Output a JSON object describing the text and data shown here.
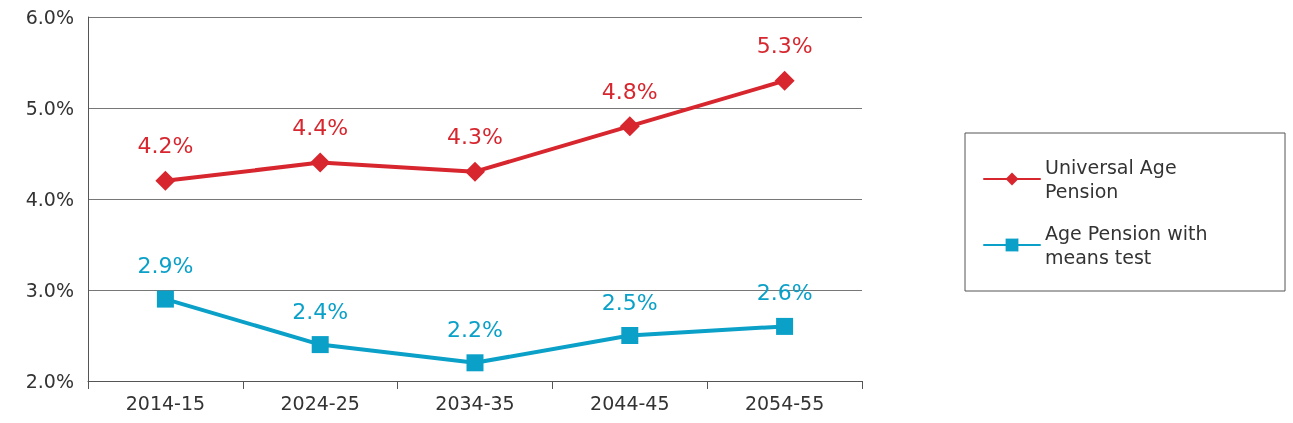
{
  "chart_data": {
    "type": "line",
    "categories": [
      "2014-15",
      "2024-25",
      "2034-35",
      "2044-45",
      "2054-55"
    ],
    "series": [
      {
        "name": "Universal Age Pension",
        "color": "#d7262e",
        "marker": "diamond",
        "values": [
          4.2,
          4.4,
          4.3,
          4.8,
          5.3
        ],
        "value_labels": [
          "4.2%",
          "4.4%",
          "4.3%",
          "4.8%",
          "5.3%"
        ]
      },
      {
        "name": "Age Pension with means test",
        "color": "#0aa0c8",
        "marker": "square",
        "values": [
          2.9,
          2.4,
          2.2,
          2.5,
          2.6
        ],
        "value_labels": [
          "2.9%",
          "2.4%",
          "2.2%",
          "2.5%",
          "2.6%"
        ]
      }
    ],
    "ylim": [
      2,
      6
    ],
    "yticks": [
      {
        "value": 2,
        "label": "2.0%"
      },
      {
        "value": 3,
        "label": "3.0%"
      },
      {
        "value": 4,
        "label": "4.0%"
      },
      {
        "value": 5,
        "label": "5.0%"
      },
      {
        "value": 6,
        "label": "6.0%"
      }
    ],
    "grid": "y",
    "legend": "right",
    "line_style": "solid"
  }
}
